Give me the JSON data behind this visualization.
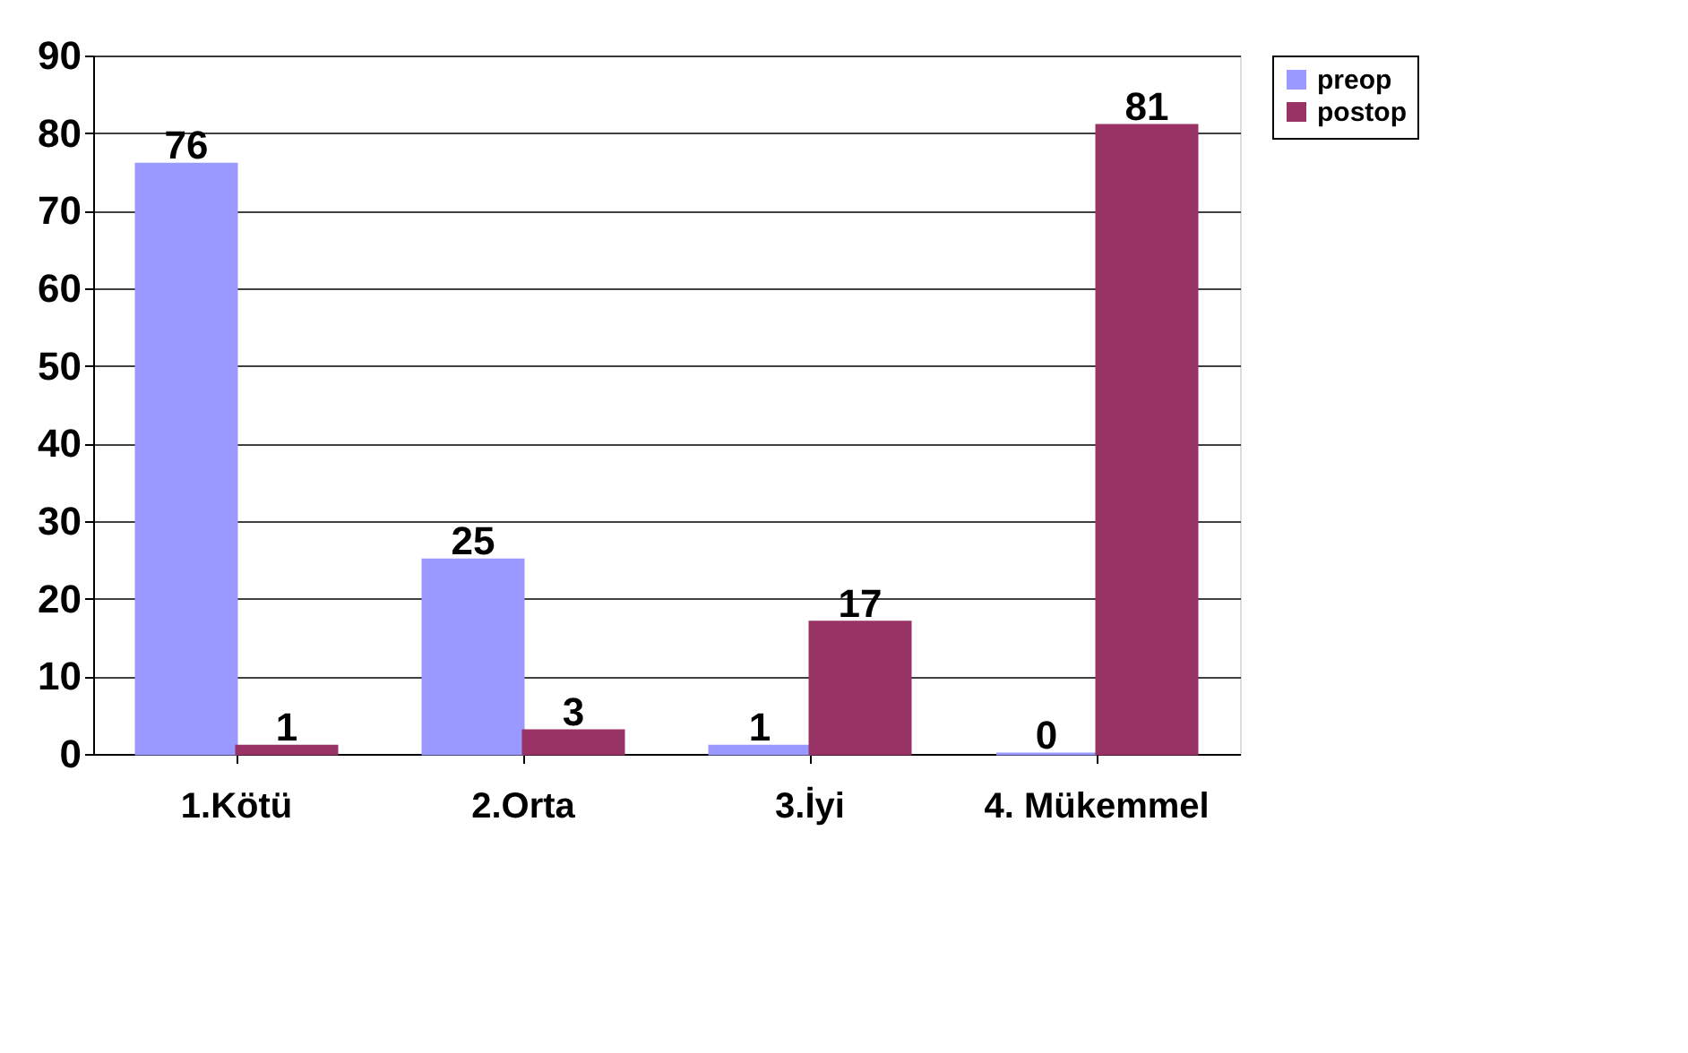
{
  "chart_data": {
    "type": "bar",
    "categories": [
      "1.Kötü",
      "2.Orta",
      "3.İyi",
      "4. Mükemmel"
    ],
    "series": [
      {
        "name": "preop",
        "color": "#9999ff",
        "values": [
          76,
          25,
          1,
          0
        ]
      },
      {
        "name": "postop",
        "color": "#993366",
        "values": [
          1,
          3,
          17,
          81
        ]
      }
    ],
    "ylim": [
      0,
      90
    ],
    "yticks": [
      0,
      10,
      20,
      30,
      40,
      50,
      60,
      70,
      80,
      90
    ],
    "grid": "y",
    "legend": "right",
    "data_labels": true
  }
}
